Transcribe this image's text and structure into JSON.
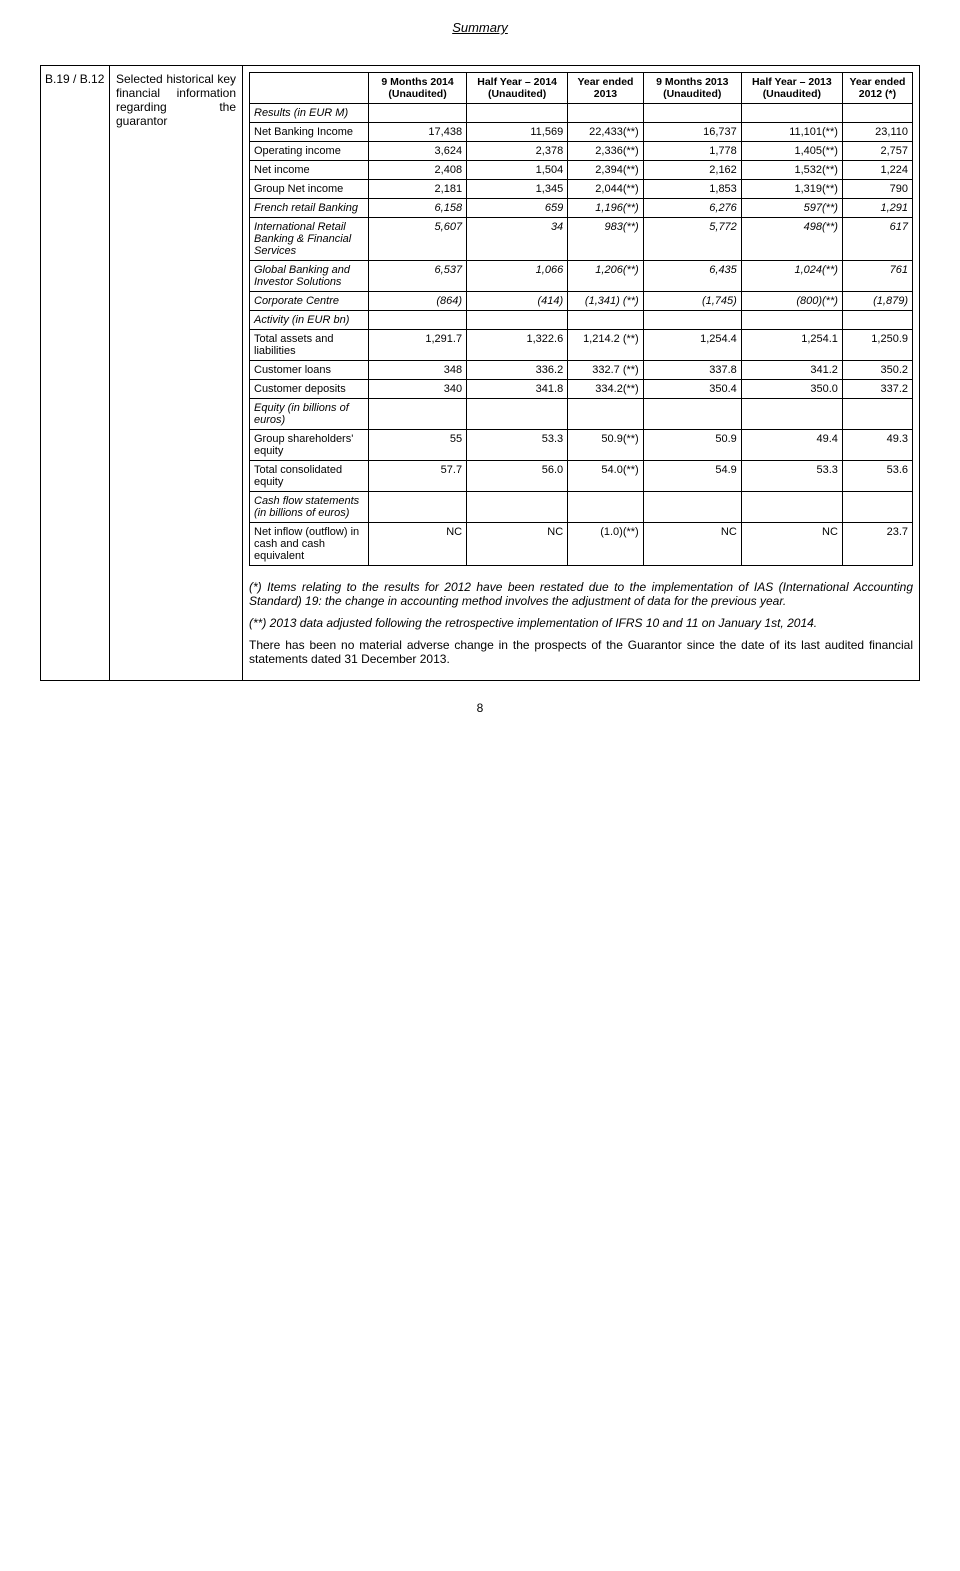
{
  "page_title": "Summary",
  "ref": "B.19 / B.12",
  "section_label": "Selected historical key financial information regarding the guarantor",
  "columns": [
    "9 Months 2014 (Unaudited)",
    "Half Year – 2014 (Unaudited)",
    "Year ended 2013",
    "9 Months 2013 (Unaudited)",
    "Half Year – 2013 (Unaudited)",
    "Year ended 2012 (*)"
  ],
  "rows": [
    {
      "label": "Results (in EUR M)",
      "italic": true,
      "cells": [
        "",
        "",
        "",
        "",
        "",
        ""
      ]
    },
    {
      "label": "Net Banking Income",
      "cells": [
        "17,438",
        "11,569",
        "22,433(**)",
        "16,737",
        "11,101(**)",
        "23,110"
      ]
    },
    {
      "label": "Operating income",
      "cells": [
        "3,624",
        "2,378",
        "2,336(**)",
        "1,778",
        "1,405(**)",
        "2,757"
      ]
    },
    {
      "label": "Net income",
      "cells": [
        "2,408",
        "1,504",
        "2,394(**)",
        "2,162",
        "1,532(**)",
        "1,224"
      ]
    },
    {
      "label": "Group Net income",
      "cells": [
        "2,181",
        "1,345",
        "2,044(**)",
        "1,853",
        "1,319(**)",
        "790"
      ]
    },
    {
      "label": "French retail Banking",
      "italic": true,
      "cells": [
        "6,158",
        "659",
        "1,196(**)",
        "6,276",
        "597(**)",
        "1,291"
      ]
    },
    {
      "label": "International Retail Banking & Financial Services",
      "italic": true,
      "cells": [
        "5,607",
        "34",
        "983(**)",
        "5,772",
        "498(**)",
        "617"
      ]
    },
    {
      "label": "Global Banking and Investor Solutions",
      "italic": true,
      "cells": [
        "6,537",
        "1,066",
        "1,206(**)",
        "6,435",
        "1,024(**)",
        "761"
      ]
    },
    {
      "label": "Corporate Centre",
      "italic": true,
      "cells": [
        "(864)",
        "(414)",
        "(1,341) (**)",
        "(1,745)",
        "(800)(**)",
        "(1,879)"
      ]
    },
    {
      "label": "Activity (in EUR bn)",
      "italic": true,
      "cells": [
        "",
        "",
        "",
        "",
        "",
        ""
      ]
    },
    {
      "label": "Total assets and liabilities",
      "cells": [
        "1,291.7",
        "1,322.6",
        "1,214.2 (**)",
        "1,254.4",
        "1,254.1",
        "1,250.9"
      ]
    },
    {
      "label": "Customer loans",
      "cells": [
        "348",
        "336.2",
        "332.7 (**)",
        "337.8",
        "341.2",
        "350.2"
      ]
    },
    {
      "label": "Customer deposits",
      "cells": [
        "340",
        "341.8",
        "334.2(**)",
        "350.4",
        "350.0",
        "337.2"
      ]
    },
    {
      "label": "Equity (in billions of euros)",
      "italic": true,
      "cells": [
        "",
        "",
        "",
        "",
        "",
        ""
      ]
    },
    {
      "label": "Group shareholders' equity",
      "cells": [
        "55",
        "53.3",
        "50.9(**)",
        "50.9",
        "49.4",
        "49.3"
      ]
    },
    {
      "label": "Total consolidated equity",
      "cells": [
        "57.7",
        "56.0",
        "54.0(**)",
        "54.9",
        "53.3",
        "53.6"
      ]
    },
    {
      "label": "Cash flow statements (in billions of euros)",
      "italic": true,
      "cells": [
        "",
        "",
        "",
        "",
        "",
        ""
      ]
    },
    {
      "label": "Net inflow (outflow) in cash and cash equivalent",
      "cells": [
        "NC",
        "NC",
        "(1.0)(**)",
        "NC",
        "NC",
        "23.7"
      ]
    }
  ],
  "notes": [
    "(*) Items relating to the results for 2012 have been restated due to the implementation of IAS (International Accounting Standard) 19: the change in accounting method involves the adjustment of data for the previous year.",
    "(**) 2013 data adjusted following the retrospective implementation of IFRS 10 and 11 on January 1st, 2014.",
    "There has been no material adverse change in the prospects of the Guarantor since the date of its last audited financial statements dated 31 December 2013."
  ],
  "page_number": "8"
}
